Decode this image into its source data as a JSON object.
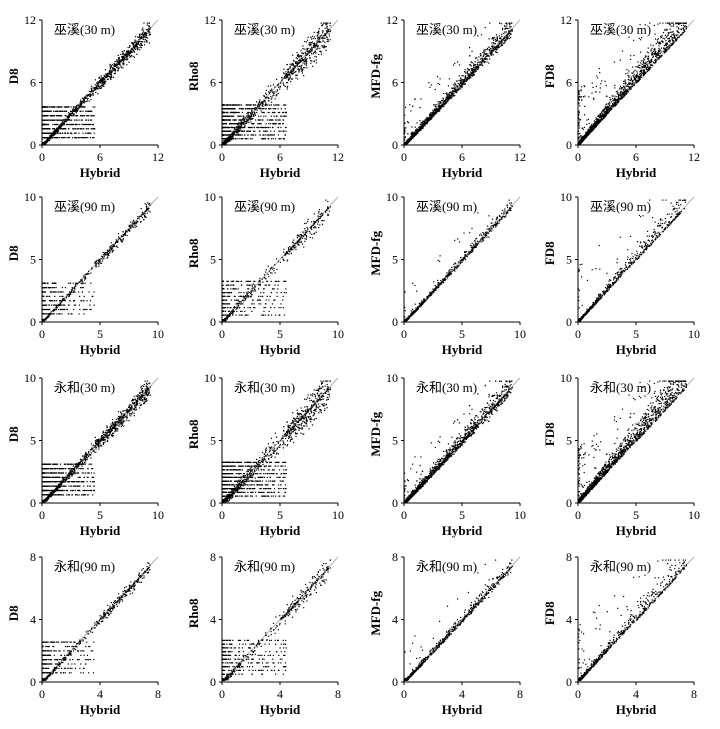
{
  "chart_data": [
    {
      "type": "scatter",
      "title": "巫溪(30 m)",
      "xlabel": "Hybrid",
      "ylabel": "D8",
      "xlim": [
        0,
        12
      ],
      "ylim": [
        0,
        12
      ],
      "xticks": [
        0,
        6,
        12
      ],
      "yticks": [
        0,
        6,
        12
      ],
      "pattern": "d8"
    },
    {
      "type": "scatter",
      "title": "巫溪(30 m)",
      "xlabel": "Hybrid",
      "ylabel": "Rho8",
      "xlim": [
        0,
        12
      ],
      "ylim": [
        0,
        12
      ],
      "xticks": [
        0,
        6,
        12
      ],
      "yticks": [
        0,
        6,
        12
      ],
      "pattern": "rho8"
    },
    {
      "type": "scatter",
      "title": "巫溪(30 m)",
      "xlabel": "Hybrid",
      "ylabel": "MFD-fg",
      "xlim": [
        0,
        12
      ],
      "ylim": [
        0,
        12
      ],
      "xticks": [
        0,
        6,
        12
      ],
      "yticks": [
        0,
        6,
        12
      ],
      "pattern": "mfd"
    },
    {
      "type": "scatter",
      "title": "巫溪(30 m)",
      "xlabel": "Hybrid",
      "ylabel": "FD8",
      "xlim": [
        0,
        12
      ],
      "ylim": [
        0,
        12
      ],
      "xticks": [
        0,
        6,
        12
      ],
      "yticks": [
        0,
        6,
        12
      ],
      "pattern": "fd8"
    },
    {
      "type": "scatter",
      "title": "巫溪(90 m)",
      "xlabel": "Hybrid",
      "ylabel": "D8",
      "xlim": [
        0,
        10
      ],
      "ylim": [
        0,
        10
      ],
      "xticks": [
        0,
        5,
        10
      ],
      "yticks": [
        0,
        5,
        10
      ],
      "pattern": "d8"
    },
    {
      "type": "scatter",
      "title": "巫溪(90 m)",
      "xlabel": "Hybrid",
      "ylabel": "Rho8",
      "xlim": [
        0,
        10
      ],
      "ylim": [
        0,
        10
      ],
      "xticks": [
        0,
        5,
        10
      ],
      "yticks": [
        0,
        5,
        10
      ],
      "pattern": "rho8"
    },
    {
      "type": "scatter",
      "title": "巫溪(90 m)",
      "xlabel": "Hybrid",
      "ylabel": "MFD-fg",
      "xlim": [
        0,
        10
      ],
      "ylim": [
        0,
        10
      ],
      "xticks": [
        0,
        5,
        10
      ],
      "yticks": [
        0,
        5,
        10
      ],
      "pattern": "mfd"
    },
    {
      "type": "scatter",
      "title": "巫溪(90 m)",
      "xlabel": "Hybrid",
      "ylabel": "FD8",
      "xlim": [
        0,
        10
      ],
      "ylim": [
        0,
        10
      ],
      "xticks": [
        0,
        5,
        10
      ],
      "yticks": [
        0,
        5,
        10
      ],
      "pattern": "fd8"
    },
    {
      "type": "scatter",
      "title": "永和(30 m)",
      "xlabel": "Hybrid",
      "ylabel": "D8",
      "xlim": [
        0,
        10
      ],
      "ylim": [
        0,
        10
      ],
      "xticks": [
        0,
        5,
        10
      ],
      "yticks": [
        0,
        5,
        10
      ],
      "pattern": "d8"
    },
    {
      "type": "scatter",
      "title": "永和(30 m)",
      "xlabel": "Hybrid",
      "ylabel": "Rho8",
      "xlim": [
        0,
        10
      ],
      "ylim": [
        0,
        10
      ],
      "xticks": [
        0,
        5,
        10
      ],
      "yticks": [
        0,
        5,
        10
      ],
      "pattern": "rho8"
    },
    {
      "type": "scatter",
      "title": "永和(30 m)",
      "xlabel": "Hybrid",
      "ylabel": "MFD-fg",
      "xlim": [
        0,
        10
      ],
      "ylim": [
        0,
        10
      ],
      "xticks": [
        0,
        5,
        10
      ],
      "yticks": [
        0,
        5,
        10
      ],
      "pattern": "mfd"
    },
    {
      "type": "scatter",
      "title": "永和(30 m)",
      "xlabel": "Hybrid",
      "ylabel": "FD8",
      "xlim": [
        0,
        10
      ],
      "ylim": [
        0,
        10
      ],
      "xticks": [
        0,
        5,
        10
      ],
      "yticks": [
        0,
        5,
        10
      ],
      "pattern": "fd8"
    },
    {
      "type": "scatter",
      "title": "永和(90 m)",
      "xlabel": "Hybrid",
      "ylabel": "D8",
      "xlim": [
        0,
        8
      ],
      "ylim": [
        0,
        8
      ],
      "xticks": [
        0,
        4,
        8
      ],
      "yticks": [
        0,
        4,
        8
      ],
      "pattern": "d8"
    },
    {
      "type": "scatter",
      "title": "永和(90 m)",
      "xlabel": "Hybrid",
      "ylabel": "Rho8",
      "xlim": [
        0,
        8
      ],
      "ylim": [
        0,
        8
      ],
      "xticks": [
        0,
        4,
        8
      ],
      "yticks": [
        0,
        4,
        8
      ],
      "pattern": "rho8"
    },
    {
      "type": "scatter",
      "title": "永和(90 m)",
      "xlabel": "Hybrid",
      "ylabel": "MFD-fg",
      "xlim": [
        0,
        8
      ],
      "ylim": [
        0,
        8
      ],
      "xticks": [
        0,
        4,
        8
      ],
      "yticks": [
        0,
        4,
        8
      ],
      "pattern": "mfd"
    },
    {
      "type": "scatter",
      "title": "永和(90 m)",
      "xlabel": "Hybrid",
      "ylabel": "FD8",
      "xlim": [
        0,
        8
      ],
      "ylim": [
        0,
        8
      ],
      "xticks": [
        0,
        4,
        8
      ],
      "yticks": [
        0,
        4,
        8
      ],
      "pattern": "fd8"
    }
  ],
  "colors": {
    "points": "#000000",
    "one_to_one_line": "#9a9a9a",
    "axis": "#000000"
  }
}
